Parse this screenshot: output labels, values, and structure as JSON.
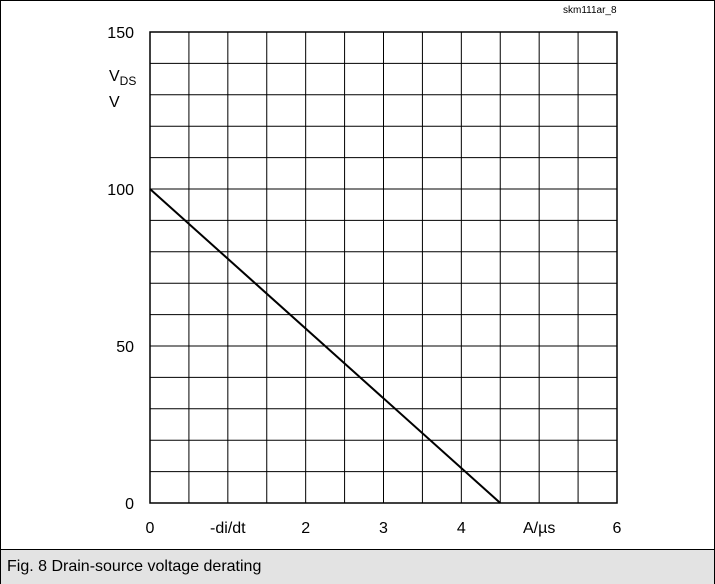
{
  "chart_data": {
    "type": "line",
    "reference_code": "skm111ar_8",
    "xlabel": "-di/dt",
    "xunit": "A/µs",
    "ylabel_main": "V",
    "ylabel_sub": "DS",
    "yunit": "V",
    "xlim": [
      0,
      6
    ],
    "ylim": [
      0,
      150
    ],
    "x_ticks": [
      "0",
      "-di/dt",
      "2",
      "3",
      "4",
      "A/µs",
      "6"
    ],
    "y_ticks": [
      "0",
      "50",
      "100",
      "150"
    ],
    "x_tick_values": [
      0,
      1,
      2,
      3,
      4,
      5,
      6
    ],
    "y_tick_values": [
      0,
      50,
      100,
      150
    ],
    "grid": true,
    "series": [
      {
        "x": [
          0,
          4.5
        ],
        "y": [
          100,
          0
        ]
      }
    ]
  },
  "caption": "Fig. 8 Drain-source voltage derating"
}
